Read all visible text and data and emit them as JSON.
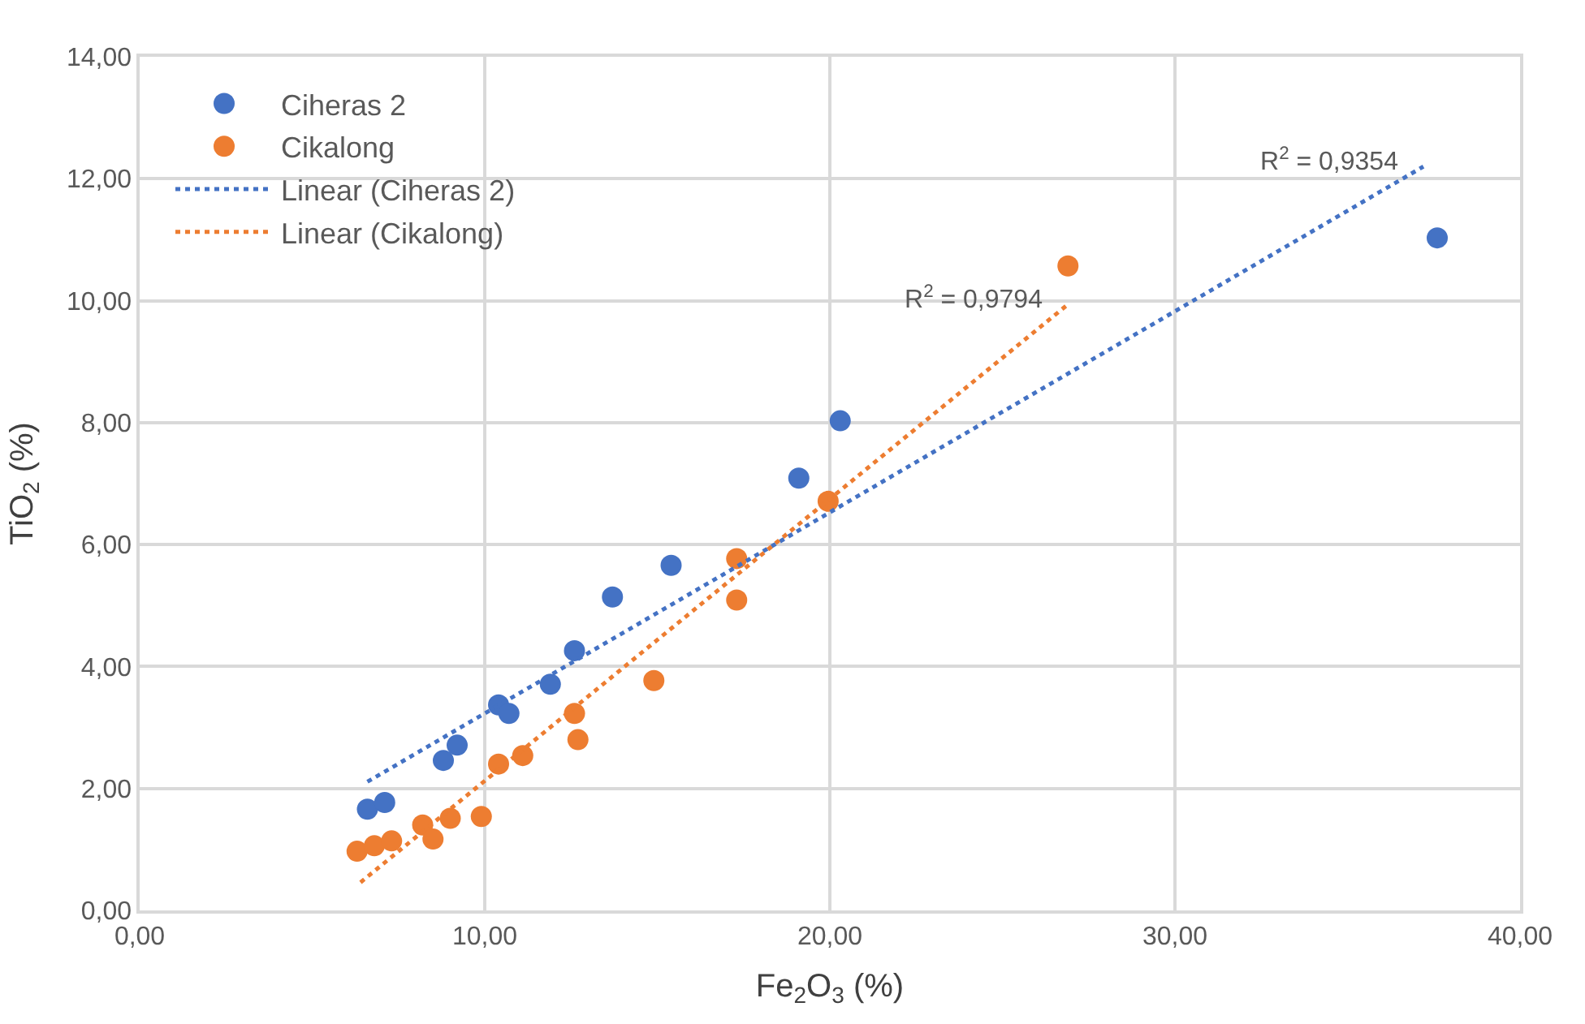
{
  "chart_data": {
    "type": "scatter",
    "xlabel": "Fe$_{2}$O$_{3}$ (%)",
    "ylabel": "TiO$_{2}$ (%)",
    "xlim": [
      0,
      40
    ],
    "ylim": [
      0,
      14
    ],
    "xticks": [
      {
        "value": 0,
        "label": "0,00"
      },
      {
        "value": 10,
        "label": "10,00"
      },
      {
        "value": 20,
        "label": "20,00"
      },
      {
        "value": 30,
        "label": "30,00"
      },
      {
        "value": 40,
        "label": "40,00"
      }
    ],
    "yticks": [
      {
        "value": 0,
        "label": "0,00"
      },
      {
        "value": 2,
        "label": "2,00"
      },
      {
        "value": 4,
        "label": "4,00"
      },
      {
        "value": 6,
        "label": "6,00"
      },
      {
        "value": 8,
        "label": "8,00"
      },
      {
        "value": 10,
        "label": "10,00"
      },
      {
        "value": 12,
        "label": "12,00"
      },
      {
        "value": 14,
        "label": "14,00"
      }
    ],
    "grid": true,
    "legend": "top left",
    "marker": "circle",
    "series": [
      {
        "name": "Ciheras 2",
        "color": "#4472c4",
        "x": [
          6.6,
          7.1,
          8.8,
          9.2,
          10.4,
          10.7,
          11.9,
          12.6,
          13.7,
          15.4,
          19.1,
          20.3,
          37.6
        ],
        "values": [
          1.66,
          1.77,
          2.46,
          2.71,
          3.37,
          3.23,
          3.71,
          4.26,
          5.14,
          5.66,
          7.09,
          8.03,
          11.03
        ]
      },
      {
        "name": "Cikalong",
        "color": "#ed7d31",
        "x": [
          6.3,
          6.8,
          7.3,
          8.2,
          8.5,
          9.0,
          9.9,
          10.4,
          11.1,
          12.6,
          12.7,
          14.9,
          17.3,
          17.3,
          19.95,
          26.9
        ],
        "values": [
          0.97,
          1.06,
          1.14,
          1.4,
          1.17,
          1.51,
          1.54,
          2.4,
          2.54,
          3.23,
          2.8,
          3.77,
          5.09,
          5.77,
          6.71,
          10.57
        ]
      },
      {
        "name": "Linear (Ciheras 2)",
        "type": "line",
        "line_style": "dotted",
        "marker": "none",
        "color": "#4472c4",
        "x": [
          6.6,
          37.2
        ],
        "values": [
          2.11,
          12.2
        ]
      },
      {
        "name": "Linear (Cikalong)",
        "type": "line",
        "line_style": "dotted",
        "marker": "none",
        "color": "#ed7d31",
        "x": [
          6.4,
          26.9
        ],
        "values": [
          0.46,
          9.94
        ]
      }
    ],
    "annotations": [
      "R$^{2}$ = 0,9354",
      "R$^{2}$ = 0,9794"
    ]
  }
}
